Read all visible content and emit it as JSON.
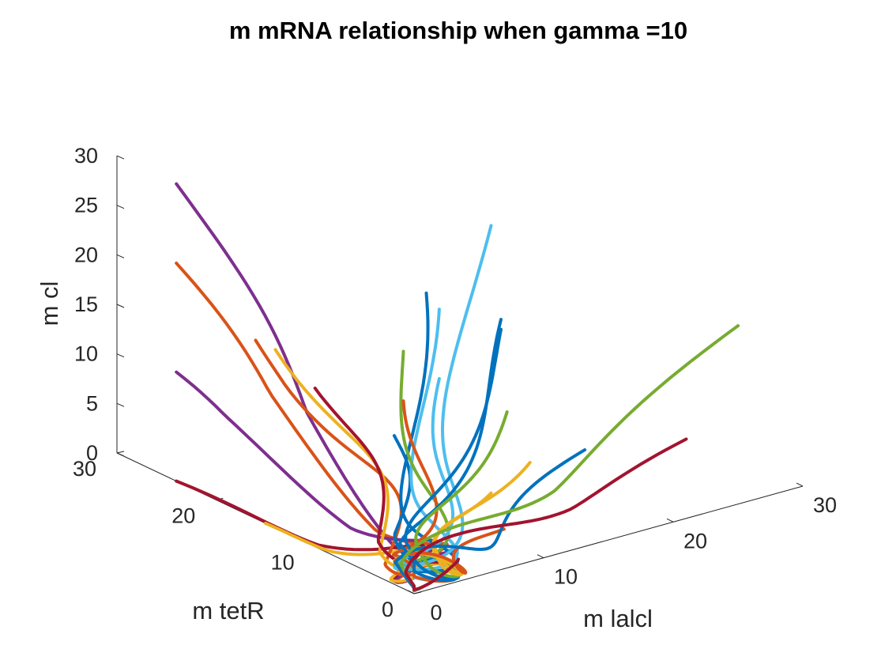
{
  "chart_data": {
    "type": "line3d",
    "title": "m mRNA relationship when gamma =10",
    "xlabel": "m lalcl",
    "ylabel": "m tetR",
    "zlabel": "m cl",
    "xlim": [
      0,
      30
    ],
    "ylim": [
      0,
      30
    ],
    "zlim": [
      0,
      30
    ],
    "x_ticks": [
      "0",
      "10",
      "20",
      "30"
    ],
    "y_ticks": [
      "0",
      "10",
      "20",
      "30"
    ],
    "z_ticks": [
      "0",
      "5",
      "10",
      "15",
      "20",
      "25",
      "30"
    ],
    "grid": false,
    "colors": [
      "#0072BD",
      "#D95319",
      "#EDB120",
      "#7E2F8E",
      "#77AC30",
      "#4DBEEE",
      "#A2142F"
    ],
    "series": [
      {
        "color": "#7E2F8E",
        "start": [
          0,
          24,
          30
        ]
      },
      {
        "color": "#D95319",
        "start": [
          0,
          24,
          22
        ]
      },
      {
        "color": "#7E2F8E",
        "start": [
          0,
          24,
          11
        ]
      },
      {
        "color": "#A2142F",
        "start": [
          0,
          24,
          0
        ]
      },
      {
        "color": "#EDB120",
        "start": [
          0,
          15,
          0
        ]
      },
      {
        "color": "#D95319",
        "start": [
          0,
          16,
          18
        ]
      },
      {
        "color": "#EDB120",
        "start": [
          0,
          14,
          18
        ]
      },
      {
        "color": "#A2142F",
        "start": [
          0,
          10,
          16
        ]
      },
      {
        "color": "#0072BD",
        "start": [
          0,
          2,
          15
        ]
      },
      {
        "color": "#0072BD",
        "start": [
          4,
          4,
          27
        ]
      },
      {
        "color": "#4DBEEE",
        "start": [
          5,
          4,
          25
        ]
      },
      {
        "color": "#4DBEEE",
        "start": [
          9,
          4,
          32
        ]
      },
      {
        "color": "#77AC30",
        "start": [
          3,
          5,
          21
        ]
      },
      {
        "color": "#4DBEEE",
        "start": [
          5,
          4,
          18
        ]
      },
      {
        "color": "#D95319",
        "start": [
          3,
          5,
          16
        ]
      },
      {
        "color": "#0072BD",
        "start": [
          9,
          3,
          23
        ]
      },
      {
        "color": "#0072BD",
        "start": [
          9,
          3,
          22
        ]
      },
      {
        "color": "#77AC30",
        "start": [
          11,
          5,
          12
        ]
      },
      {
        "color": "#EDB120",
        "start": [
          12,
          4,
          7
        ]
      },
      {
        "color": "#EDB120",
        "start": [
          9,
          4,
          5
        ]
      },
      {
        "color": "#D95319",
        "start": [
          10,
          4,
          1
        ]
      },
      {
        "color": "#0072BD",
        "start": [
          17,
          5,
          6
        ]
      },
      {
        "color": "#77AC30",
        "start": [
          25,
          0,
          18
        ]
      },
      {
        "color": "#A2142F",
        "start": [
          21,
          0,
          8
        ]
      }
    ]
  }
}
